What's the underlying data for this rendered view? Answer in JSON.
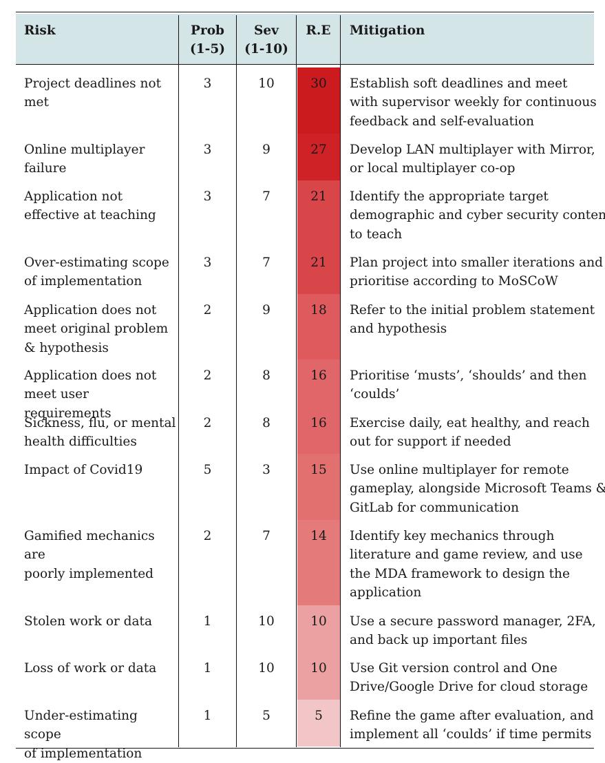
{
  "table": {
    "columns": {
      "risk": "Risk",
      "prob": [
        "Prob",
        "(1-5)"
      ],
      "sev": [
        "Sev",
        "(1-10)"
      ],
      "re": "R.E",
      "mitigation": "Mitigation"
    },
    "rows": [
      {
        "risk": [
          "Project deadlines not",
          "met"
        ],
        "prob": "3",
        "sev": "10",
        "re": "30",
        "re_color": "#cc1b1f",
        "mitigation": [
          "Establish soft deadlines and meet",
          "with supervisor weekly for continuous",
          "feedback and self-evaluation"
        ]
      },
      {
        "risk": [
          "Online multiplayer",
          "failure"
        ],
        "prob": "3",
        "sev": "9",
        "re": "27",
        "re_color": "#cf2227",
        "mitigation": [
          "Develop LAN multiplayer with Mirror,",
          "or local multiplayer co-op"
        ]
      },
      {
        "risk": [
          "Application not",
          "effective at teaching"
        ],
        "prob": "3",
        "sev": "7",
        "re": "21",
        "re_color": "#d8464a",
        "mitigation": [
          "Identify the appropriate target",
          "demographic and cyber security content",
          "to teach"
        ]
      },
      {
        "risk": [
          "Over-estimating scope",
          "of implementation"
        ],
        "prob": "3",
        "sev": "7",
        "re": "21",
        "re_color": "#d8464a",
        "mitigation": [
          "Plan project into smaller iterations and",
          "prioritise according to MoSCoW"
        ]
      },
      {
        "risk": [
          "Application does not",
          "meet original problem",
          "& hypothesis"
        ],
        "prob": "2",
        "sev": "9",
        "re": "18",
        "re_color": "#de5a5d",
        "mitigation": [
          "Refer to the initial problem statement",
          "and hypothesis"
        ]
      },
      {
        "risk": [
          "Application does not",
          "meet user requirements"
        ],
        "prob": "2",
        "sev": "8",
        "re": "16",
        "re_color": "#e06669",
        "mitigation": [
          "Prioritise ‘musts’, ‘shoulds’ and then",
          "‘coulds’"
        ]
      },
      {
        "risk": [
          "Sickness, flu, or mental",
          "health difficulties"
        ],
        "prob": "2",
        "sev": "8",
        "re": "16",
        "re_color": "#e06669",
        "mitigation": [
          "Exercise daily, eat healthy, and reach",
          "out for support if needed"
        ]
      },
      {
        "risk": [
          "Impact of Covid19"
        ],
        "prob": "5",
        "sev": "3",
        "re": "15",
        "re_color": "#e2706f",
        "mitigation": [
          "Use online multiplayer for remote",
          "gameplay, alongside Microsoft Teams &",
          "GitLab for communication"
        ]
      },
      {
        "risk": [
          "Gamified mechanics are",
          "poorly implemented"
        ],
        "prob": "2",
        "sev": "7",
        "re": "14",
        "re_color": "#e47a7a",
        "mitigation": [
          "Identify key mechanics through",
          "literature and game review, and use",
          "the MDA framework to design the",
          "application"
        ]
      },
      {
        "risk": [
          "Stolen work or data"
        ],
        "prob": "1",
        "sev": "10",
        "re": "10",
        "re_color": "#eba1a2",
        "mitigation": [
          "Use a secure password manager, 2FA,",
          "and back up important files"
        ]
      },
      {
        "risk": [
          "Loss of work or data"
        ],
        "prob": "1",
        "sev": "10",
        "re": "10",
        "re_color": "#eba1a2",
        "mitigation": [
          "Use Git version control and One",
          "Drive/Google Drive for cloud storage"
        ]
      },
      {
        "risk": [
          "Under-estimating scope",
          "of implementation"
        ],
        "prob": "1",
        "sev": "5",
        "re": "5",
        "re_color": "#f2c5c6",
        "mitigation": [
          "Refine the game after evaluation, and",
          "implement all ‘coulds’ if time permits"
        ]
      }
    ]
  }
}
